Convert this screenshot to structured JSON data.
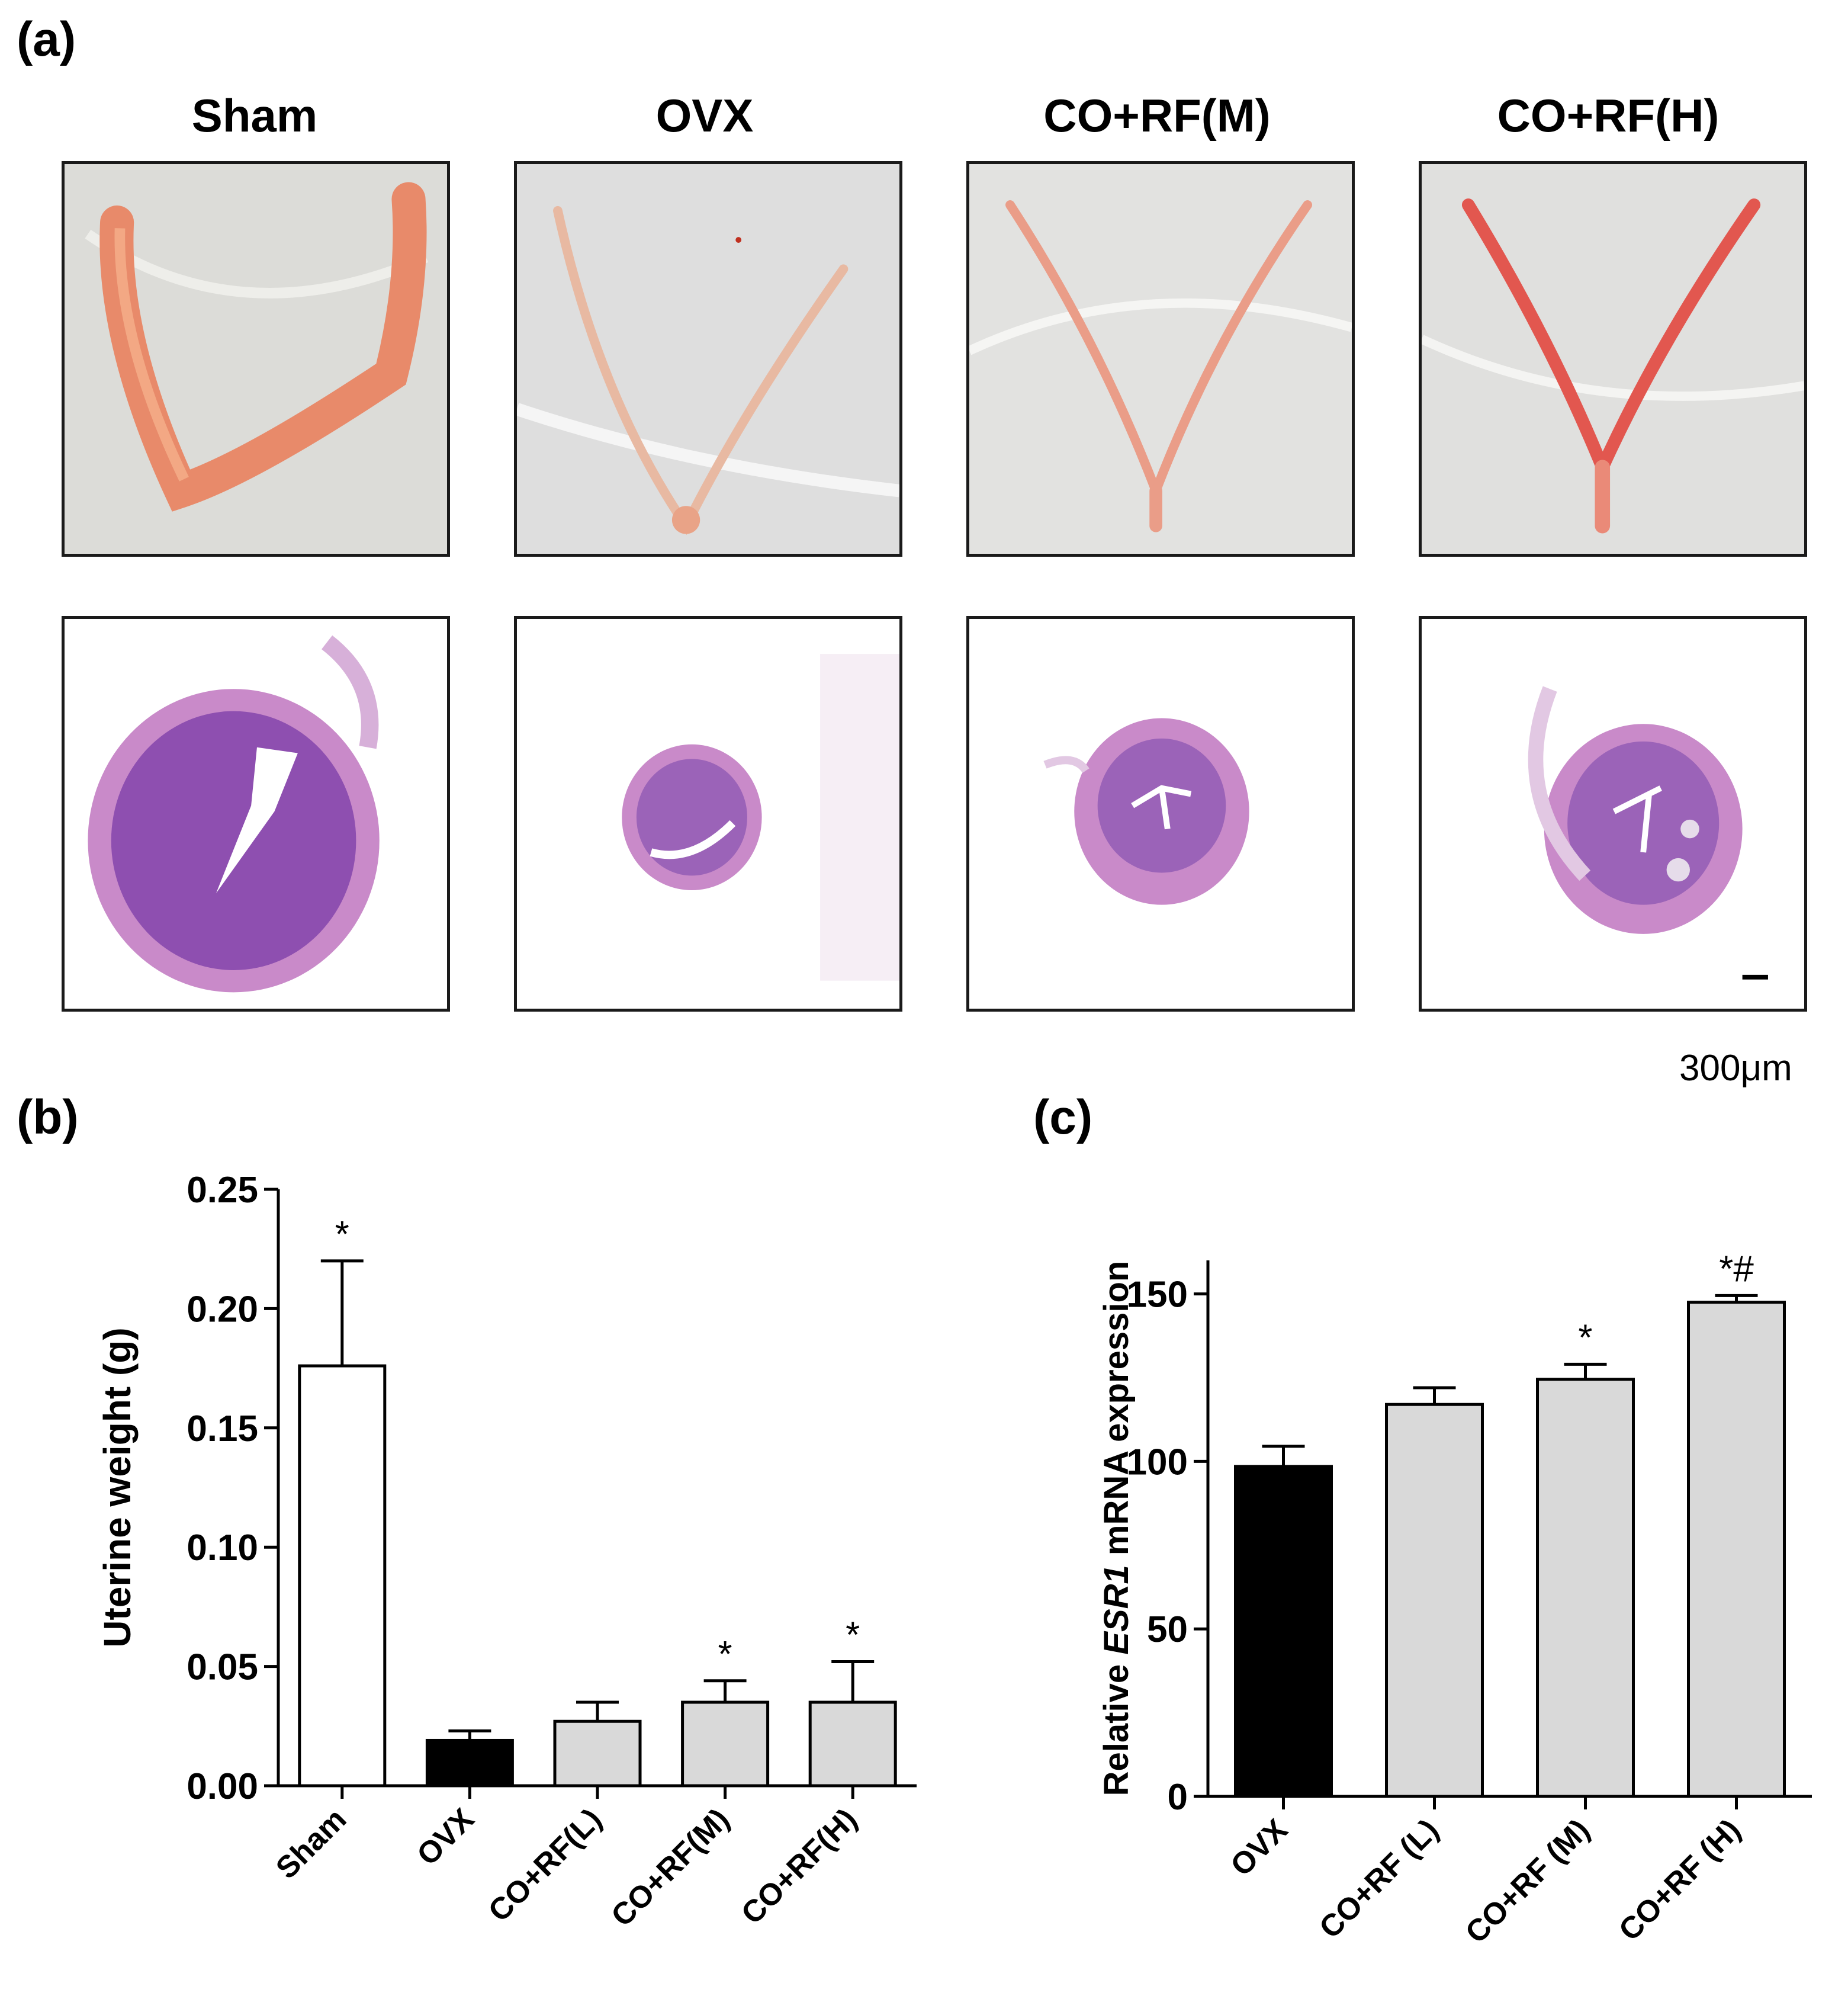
{
  "panel_a": {
    "label": "(a)",
    "groups": [
      "Sham",
      "OVX",
      "CO+RF(M)",
      "CO+RF(H)"
    ],
    "scale_bar": "300μm",
    "photo_rows": [
      {
        "name": "gross-uterus-photos"
      },
      {
        "name": "histology-sections"
      }
    ]
  },
  "panel_b": {
    "label": "(b)"
  },
  "panel_c": {
    "label": "(c)"
  },
  "colors": {
    "sham": "#ffffff",
    "ovx": "#000000",
    "treated": "#d9d9d9",
    "axis": "#000000"
  },
  "chart_data": [
    {
      "id": "b",
      "type": "bar",
      "ylabel": "Uterine weight (g)",
      "ylim": [
        0,
        0.25
      ],
      "yticks": [
        0.0,
        0.05,
        0.1,
        0.15,
        0.2,
        0.25
      ],
      "ytick_labels": [
        "0.00",
        "0.05",
        "0.10",
        "0.15",
        "0.20",
        "0.25"
      ],
      "categories": [
        "Sham",
        "OVX",
        "CO+RF(L)",
        "CO+RF(M)",
        "CO+RF(H)"
      ],
      "values": [
        0.176,
        0.019,
        0.027,
        0.035,
        0.035
      ],
      "errors": [
        0.044,
        0.004,
        0.008,
        0.009,
        0.017
      ],
      "annotations": [
        "*",
        "",
        "",
        "*",
        "*"
      ],
      "bar_colors": [
        "#ffffff",
        "#000000",
        "#d9d9d9",
        "#d9d9d9",
        "#d9d9d9"
      ]
    },
    {
      "id": "c",
      "type": "bar",
      "ylabel_parts": [
        "Relative ",
        "ESR1",
        " mRNA expression"
      ],
      "ylim": [
        0,
        160
      ],
      "yticks": [
        0,
        50,
        100,
        150
      ],
      "ytick_labels": [
        "0",
        "50",
        "100",
        "150"
      ],
      "categories": [
        "OVX",
        "CO+RF (L)",
        "CO+RF (M)",
        "CO+RF (H)"
      ],
      "values": [
        98.5,
        117,
        124.5,
        147.5
      ],
      "errors": [
        6,
        5,
        4.5,
        2
      ],
      "annotations": [
        "",
        "",
        "*",
        "*#"
      ],
      "bar_colors": [
        "#000000",
        "#d9d9d9",
        "#d9d9d9",
        "#d9d9d9"
      ]
    }
  ]
}
